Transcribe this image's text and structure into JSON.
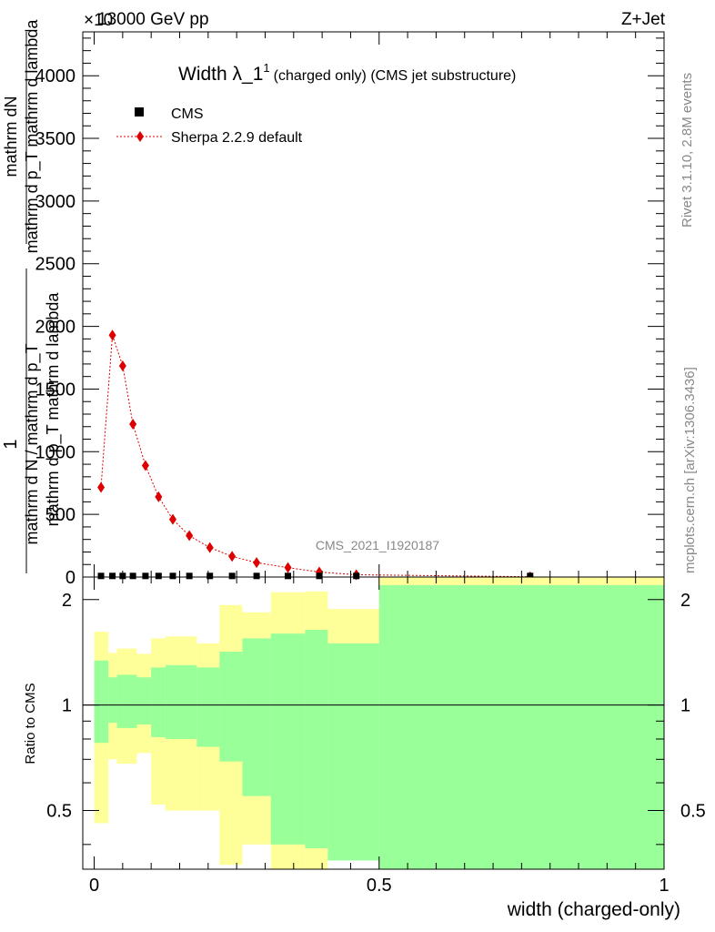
{
  "header": {
    "energy_label": "13000 GeV pp",
    "process_label": "Z+Jet",
    "exponent_label": "×10"
  },
  "side_text": {
    "rivet": "Rivet 3.1.10,  2.8M events",
    "mcplots": "mcplots.cern.ch [arXiv:1306.3436]"
  },
  "watermark": "CMS_2021_I1920187",
  "chart_data": [
    {
      "type": "scatter",
      "title": "Width λ_1",
      "title_superscript": "1",
      "title_suffix": "(charged only) (CMS jet substructure)",
      "ylabel_numerator": "mathrm dN",
      "ylabel_num_overlap": "mathrm d p_T mathrm d lambda",
      "ylabel_denominator": "mathrm d N / mathrm d p_T",
      "ylabel_one": "1",
      "ylabel_den_overlap": "mathrm d p_T mathrm d lambda",
      "ylim": [
        0,
        4350
      ],
      "y_ticks": [
        0,
        500,
        1000,
        1500,
        2000,
        2500,
        3000,
        3500,
        4000
      ],
      "y_tick_labels": [
        "0",
        "500",
        "1000",
        "1500",
        "2000",
        "2500",
        "3000",
        "3500",
        "4000"
      ],
      "xlim": [
        -0.02,
        1.0
      ],
      "legend_position": "top-left",
      "series": [
        {
          "name": "CMS",
          "color": "#000000",
          "marker": "square",
          "x": [
            0.012,
            0.032,
            0.05,
            0.068,
            0.09,
            0.113,
            0.138,
            0.167,
            0.203,
            0.242,
            0.285,
            0.34,
            0.395,
            0.46,
            0.765
          ],
          "y": [
            5,
            5,
            5,
            5,
            5,
            5,
            5,
            5,
            5,
            5,
            5,
            5,
            5,
            5,
            5
          ]
        },
        {
          "name": "Sherpa 2.2.9 default",
          "color": "#dd0000",
          "marker": "diamond",
          "linestyle": "dotted",
          "x": [
            0.012,
            0.032,
            0.05,
            0.068,
            0.09,
            0.113,
            0.138,
            0.167,
            0.203,
            0.242,
            0.285,
            0.34,
            0.395,
            0.46,
            0.765
          ],
          "y": [
            715,
            1930,
            1685,
            1220,
            890,
            640,
            460,
            330,
            235,
            165,
            115,
            75,
            40,
            18,
            2
          ]
        }
      ]
    },
    {
      "type": "area",
      "ylabel": "Ratio to CMS",
      "xlabel": "width (charged-only)",
      "ylim": [
        0.34,
        2.32
      ],
      "xlim": [
        -0.02,
        1.0
      ],
      "y_ticks": [
        0.5,
        1,
        2
      ],
      "y_tick_labels": [
        "0.5",
        "1",
        "2"
      ],
      "x_ticks": [
        0,
        0.5,
        1
      ],
      "x_tick_labels": [
        "0",
        "0.5",
        "1"
      ],
      "reference_line": 1,
      "band_colors": {
        "inner": "#99ff99",
        "outer": "#ffff99"
      },
      "bins": [
        {
          "lo": 0.0,
          "hi": 0.025,
          "inner_low": 0.78,
          "inner_high": 1.34,
          "outer_low": 0.46,
          "outer_high": 1.62
        },
        {
          "lo": 0.025,
          "hi": 0.04,
          "inner_low": 0.89,
          "inner_high": 1.2,
          "outer_low": 0.7,
          "outer_high": 1.41
        },
        {
          "lo": 0.04,
          "hi": 0.075,
          "inner_low": 0.86,
          "inner_high": 1.22,
          "outer_low": 0.68,
          "outer_high": 1.45
        },
        {
          "lo": 0.075,
          "hi": 0.1,
          "inner_low": 0.88,
          "inner_high": 1.2,
          "outer_low": 0.73,
          "outer_high": 1.4
        },
        {
          "lo": 0.1,
          "hi": 0.125,
          "inner_low": 0.81,
          "inner_high": 1.28,
          "outer_low": 0.52,
          "outer_high": 1.55
        },
        {
          "lo": 0.125,
          "hi": 0.18,
          "inner_low": 0.8,
          "inner_high": 1.3,
          "outer_low": 0.5,
          "outer_high": 1.57
        },
        {
          "lo": 0.18,
          "hi": 0.22,
          "inner_low": 0.76,
          "inner_high": 1.28,
          "outer_low": 0.5,
          "outer_high": 1.5
        },
        {
          "lo": 0.22,
          "hi": 0.26,
          "inner_low": 0.69,
          "inner_high": 1.42,
          "outer_low": 0.35,
          "outer_high": 1.93
        },
        {
          "lo": 0.26,
          "hi": 0.31,
          "inner_low": 0.55,
          "inner_high": 1.55,
          "outer_low": 0.4,
          "outer_high": 1.84
        },
        {
          "lo": 0.31,
          "hi": 0.37,
          "inner_low": 0.4,
          "inner_high": 1.6,
          "outer_low": 0.34,
          "outer_high": 2.1
        },
        {
          "lo": 0.37,
          "hi": 0.41,
          "inner_low": 0.39,
          "inner_high": 1.64,
          "outer_low": 0.34,
          "outer_high": 2.11
        },
        {
          "lo": 0.41,
          "hi": 0.5,
          "inner_low": 0.36,
          "inner_high": 1.5,
          "outer_low": 0.62,
          "outer_high": 1.88
        },
        {
          "lo": 0.5,
          "hi": 1.0,
          "inner_low": 0.34,
          "inner_high": 2.2,
          "outer_low": 0.34,
          "outer_high": 2.32
        }
      ]
    }
  ]
}
